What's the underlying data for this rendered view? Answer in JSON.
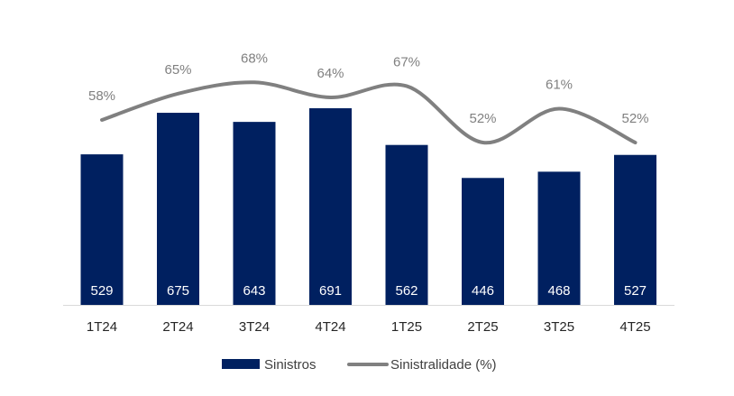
{
  "chart_data": {
    "type": "bar",
    "title": "",
    "categories": [
      "1T24",
      "2T24",
      "3T24",
      "4T24",
      "1T25",
      "2T25",
      "3T25",
      "4T25"
    ],
    "series": [
      {
        "name": "Sinistros",
        "type": "bar",
        "color": "#002060",
        "values": [
          529,
          675,
          643,
          691,
          562,
          446,
          468,
          527
        ],
        "labels": [
          "529",
          "675",
          "643",
          "691",
          "562",
          "446",
          "468",
          "527"
        ]
      },
      {
        "name": "Sinistralidade (%)",
        "type": "line",
        "color": "#808080",
        "values": [
          58,
          65,
          68,
          64,
          67,
          52,
          61,
          52
        ],
        "labels": [
          "58%",
          "65%",
          "68%",
          "64%",
          "67%",
          "52%",
          "61%",
          "52%"
        ]
      }
    ],
    "legend": {
      "position": "bottom",
      "items": [
        "Sinistros",
        "Sinistralidade (%)"
      ]
    },
    "grid": false
  }
}
